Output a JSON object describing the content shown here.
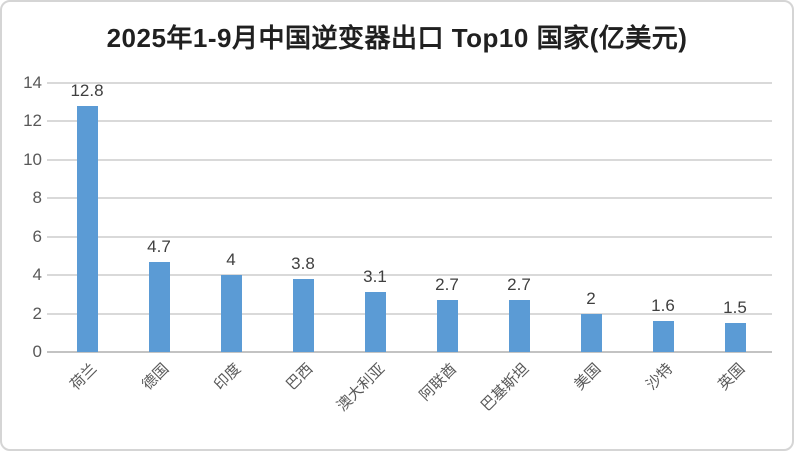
{
  "chart_data": {
    "type": "bar",
    "title": "2025年1-9月中国逆变器出口 Top10 国家(亿美元)",
    "categories": [
      "荷兰",
      "德国",
      "印度",
      "巴西",
      "澳大利亚",
      "阿联酋",
      "巴基斯坦",
      "美国",
      "沙特",
      "英国"
    ],
    "values": [
      12.8,
      4.7,
      4,
      3.8,
      3.1,
      2.7,
      2.7,
      2,
      1.6,
      1.5
    ],
    "value_labels": [
      "12.8",
      "4.7",
      "4",
      "3.8",
      "3.1",
      "2.7",
      "2.7",
      "2",
      "1.6",
      "1.5"
    ],
    "xlabel": "",
    "ylabel": "",
    "ylim": [
      0,
      14
    ],
    "yticks": [
      0,
      2,
      4,
      6,
      8,
      10,
      12,
      14
    ],
    "grid": true,
    "legend_position": "none",
    "category_label_rotation_deg": -45,
    "colors": {
      "bar": "#5B9BD5",
      "gridline": "#D9D9D9",
      "axis_line": "#C3C3C3",
      "tick_label": "#595959",
      "value_label": "#3F3F3F",
      "category_label": "#595959",
      "title": "#202020",
      "background": "#FFFFFF",
      "border": "#D5D5D5"
    }
  }
}
